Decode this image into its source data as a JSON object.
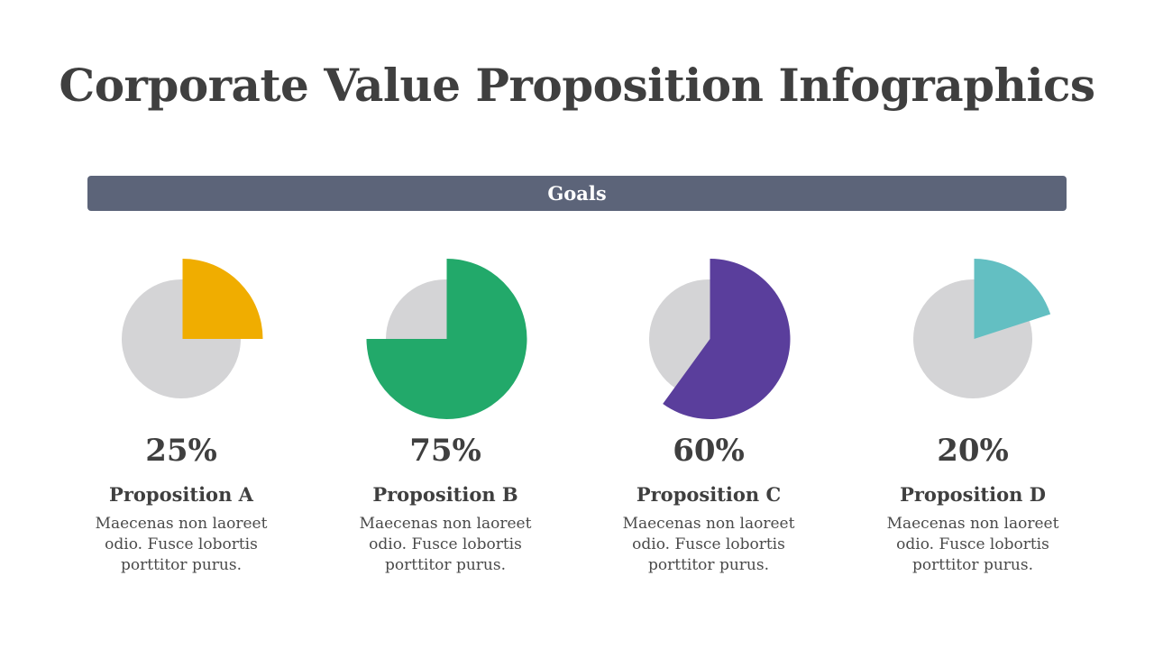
{
  "title": "Corporate Value Proposition Infographics",
  "banner": {
    "label": "Goals"
  },
  "colors": {
    "background_pie": "#d4d4d6",
    "bar": "#5c6479",
    "text": "#3f3f3f"
  },
  "chart_data": {
    "type": "pie",
    "title": "Goals",
    "items": [
      {
        "label": "Proposition A",
        "value": 25,
        "value_label": "25%",
        "color": "#f0ad00",
        "description": "Maecenas non laoreet odio. Fusce lobortis porttitor purus."
      },
      {
        "label": "Proposition B",
        "value": 75,
        "value_label": "75%",
        "color": "#22a96a",
        "description": "Maecenas non laoreet odio. Fusce lobortis porttitor purus."
      },
      {
        "label": "Proposition C",
        "value": 60,
        "value_label": "60%",
        "color": "#5a3e9c",
        "description": "Maecenas non laoreet odio. Fusce lobortis porttitor purus."
      },
      {
        "label": "Proposition D",
        "value": 20,
        "value_label": "20%",
        "color": "#63bfc2",
        "description": "Maecenas non laoreet odio. Fusce lobortis porttitor purus."
      }
    ]
  }
}
